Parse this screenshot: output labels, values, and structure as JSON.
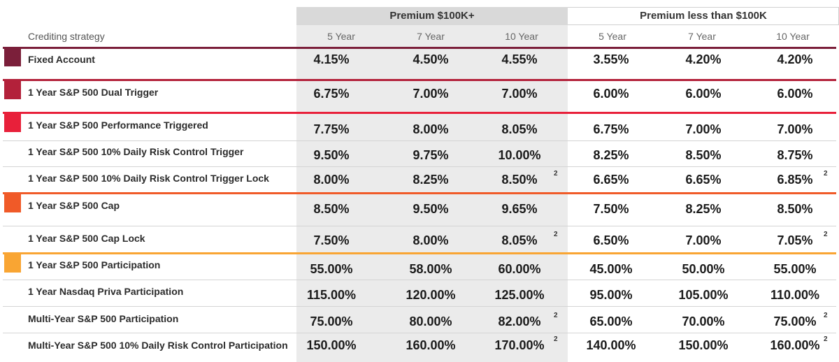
{
  "header": {
    "strategy_label": "Crediting strategy",
    "group_high": "Premium $100K+",
    "group_low": "Premium less than $100K",
    "years": [
      "5 Year",
      "7 Year",
      "10 Year",
      "5 Year",
      "7 Year",
      "10 Year"
    ]
  },
  "colors": {
    "fixed": "#7b1f3a",
    "dual": "#b3213a",
    "perf": "#e8203a",
    "cap": "#f05a28",
    "part": "#f9a533",
    "shade": "#ebebeb"
  },
  "rows": [
    {
      "label": "Fixed Account",
      "values": [
        "4.15%",
        "4.50%",
        "4.55%",
        "3.55%",
        "4.20%",
        "4.20%"
      ],
      "fn10": "",
      "fnLow10": ""
    },
    {
      "label": "1 Year S&P 500 Dual Trigger",
      "values": [
        "6.75%",
        "7.00%",
        "7.00%",
        "6.00%",
        "6.00%",
        "6.00%"
      ],
      "fn10": "",
      "fnLow10": ""
    },
    {
      "label": "1 Year S&P 500 Performance Triggered",
      "values": [
        "7.75%",
        "8.00%",
        "8.05%",
        "6.75%",
        "7.00%",
        "7.00%"
      ],
      "fn10": "",
      "fnLow10": ""
    },
    {
      "label": "1 Year S&P 500 10% Daily Risk Control Trigger",
      "values": [
        "9.50%",
        "9.75%",
        "10.00%",
        "8.25%",
        "8.50%",
        "8.75%"
      ],
      "fn10": "",
      "fnLow10": ""
    },
    {
      "label": "1 Year S&P 500 10% Daily Risk Control Trigger Lock",
      "values": [
        "8.00%",
        "8.25%",
        "8.50%",
        "6.65%",
        "6.65%",
        "6.85%"
      ],
      "fn10": "2",
      "fnLow10": "2"
    },
    {
      "label": "1 Year S&P 500 Cap",
      "values": [
        "8.50%",
        "9.50%",
        "9.65%",
        "7.50%",
        "8.25%",
        "8.50%"
      ],
      "fn10": "",
      "fnLow10": ""
    },
    {
      "label": "1 Year S&P 500 Cap Lock",
      "values": [
        "7.50%",
        "8.00%",
        "8.05%",
        "6.50%",
        "7.00%",
        "7.05%"
      ],
      "fn10": "2",
      "fnLow10": "2"
    },
    {
      "label": "1 Year S&P 500 Participation",
      "values": [
        "55.00%",
        "58.00%",
        "60.00%",
        "45.00%",
        "50.00%",
        "55.00%"
      ],
      "fn10": "",
      "fnLow10": ""
    },
    {
      "label": "1 Year Nasdaq Priva Participation",
      "values": [
        "115.00%",
        "120.00%",
        "125.00%",
        "95.00%",
        "105.00%",
        "110.00%"
      ],
      "fn10": "",
      "fnLow10": ""
    },
    {
      "label": "Multi-Year S&P 500 Participation",
      "values": [
        "75.00%",
        "80.00%",
        "82.00%",
        "65.00%",
        "70.00%",
        "75.00%"
      ],
      "fn10": "2",
      "fnLow10": "2"
    },
    {
      "label": "Multi-Year S&P 500 10% Daily Risk Control Participation",
      "values": [
        "150.00%",
        "160.00%",
        "170.00%",
        "140.00%",
        "150.00%",
        "160.00%"
      ],
      "fn10": "2",
      "fnLow10": "2"
    }
  ]
}
